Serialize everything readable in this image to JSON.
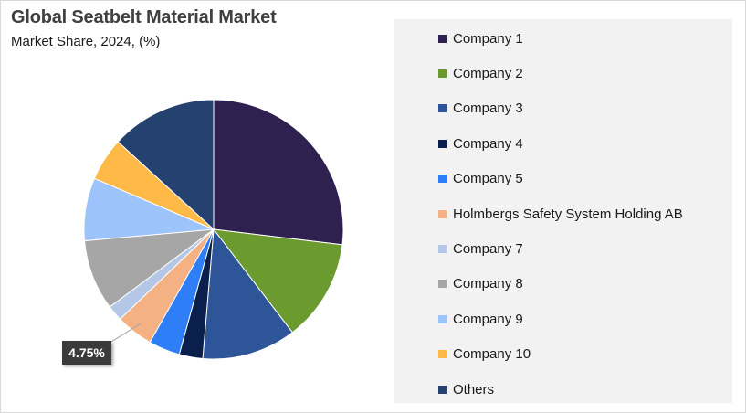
{
  "chart_data": {
    "type": "pie",
    "title": "Global Seatbelt Material Market",
    "subtitle": "Market Share, 2024, (%)",
    "legend_position": "right",
    "slices": [
      {
        "label": "Company 1",
        "value": 27.5,
        "color": "#2e2150"
      },
      {
        "label": "Company 2",
        "value": 13.0,
        "color": "#6b9a2e"
      },
      {
        "label": "Company 3",
        "value": 12.0,
        "color": "#2d5597"
      },
      {
        "label": "Company 4",
        "value": 3.0,
        "color": "#0b1f4d"
      },
      {
        "label": "Company 5",
        "value": 4.0,
        "color": "#2e7ef7"
      },
      {
        "label": "Holmbergs Safety System Holding AB",
        "value": 4.75,
        "color": "#f4b183"
      },
      {
        "label": "Company 7",
        "value": 2.0,
        "color": "#b4c7e7"
      },
      {
        "label": "Company 8",
        "value": 9.0,
        "color": "#a6a6a6"
      },
      {
        "label": "Company 9",
        "value": 8.0,
        "color": "#9dc3fb"
      },
      {
        "label": "Company 10",
        "value": 5.5,
        "color": "#ffb946"
      },
      {
        "label": "Others",
        "value": 13.5,
        "color": "#25416f"
      }
    ],
    "data_labels": [
      {
        "slice": "Holmbergs Safety System Holding AB",
        "text": "4.75%"
      }
    ]
  }
}
